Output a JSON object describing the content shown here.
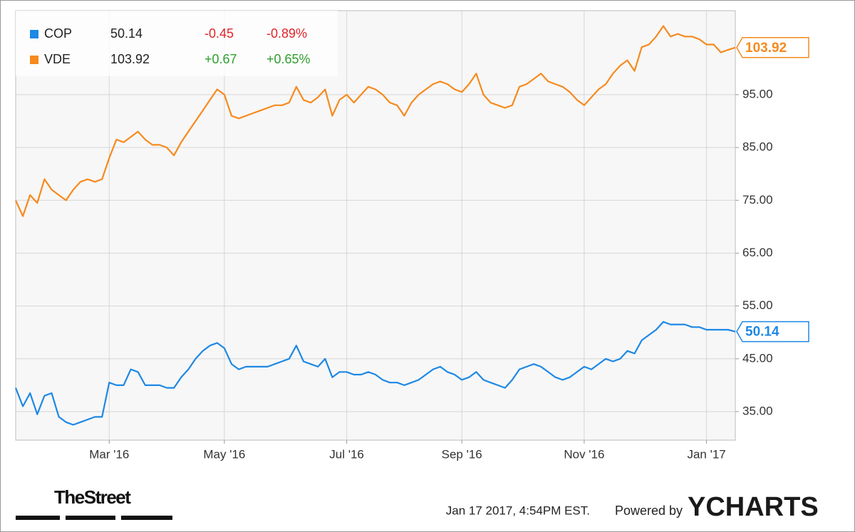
{
  "chart_data": {
    "type": "line",
    "categories": [
      null,
      null,
      null,
      null,
      null,
      null,
      null,
      null,
      null,
      null,
      null,
      null,
      null,
      "Mar '16",
      null,
      null,
      null,
      null,
      null,
      null,
      null,
      null,
      null,
      null,
      null,
      null,
      null,
      null,
      null,
      "May '16",
      null,
      null,
      null,
      null,
      null,
      null,
      null,
      null,
      null,
      null,
      null,
      null,
      null,
      null,
      null,
      null,
      "Jul '16",
      null,
      null,
      null,
      null,
      null,
      null,
      null,
      null,
      null,
      null,
      null,
      null,
      null,
      null,
      null,
      "Sep '16",
      null,
      null,
      null,
      null,
      null,
      null,
      null,
      null,
      null,
      null,
      null,
      null,
      null,
      null,
      null,
      null,
      "Nov '16",
      null,
      null,
      null,
      null,
      null,
      null,
      null,
      null,
      null,
      null,
      null,
      null,
      null,
      null,
      null,
      null,
      "Jan '17",
      null,
      null,
      null,
      null
    ],
    "series": [
      {
        "name": "COP",
        "color": "#1e88e5",
        "change": "-0.45",
        "change_pct": "-0.89%",
        "values": [
          39.5,
          36,
          38.5,
          34.5,
          38,
          38.5,
          34,
          33,
          32.5,
          33,
          33.5,
          34,
          34,
          40.5,
          40,
          40,
          43,
          42.5,
          40,
          40,
          40,
          39.5,
          39.5,
          41.5,
          43,
          45,
          46.5,
          47.5,
          48,
          47,
          44,
          43,
          43.5,
          43.5,
          43.5,
          43.5,
          44,
          44.5,
          45,
          47.5,
          44.5,
          44,
          43.5,
          45,
          41.5,
          42.5,
          42.5,
          42,
          42,
          42.5,
          42,
          41,
          40.5,
          40.5,
          40,
          40.5,
          41,
          42,
          43,
          43.5,
          42.5,
          42,
          41,
          41.5,
          42.5,
          41,
          40.5,
          40,
          39.5,
          41,
          43,
          43.5,
          44,
          43.5,
          42.5,
          41.5,
          41,
          41.5,
          42.5,
          43.5,
          43,
          44,
          45,
          44.5,
          45,
          46.5,
          46,
          48.5,
          49.5,
          50.5,
          52,
          51.5,
          51.5,
          51.5,
          51,
          51,
          50.5,
          50.5,
          50.5,
          50.5,
          50.14
        ]
      },
      {
        "name": "VDE",
        "color": "#f68a1e",
        "change": "+0.67",
        "change_pct": "+0.65%",
        "values": [
          75,
          72,
          76,
          74.5,
          79,
          77,
          76,
          75,
          77,
          78.5,
          79,
          78.5,
          79,
          83,
          86.5,
          86,
          87,
          88,
          86.5,
          85.5,
          85.5,
          85,
          83.5,
          86,
          88,
          90,
          92,
          94,
          96,
          95,
          91,
          90.5,
          91,
          91.5,
          92,
          92.5,
          93,
          93,
          93.5,
          96.5,
          94,
          93.5,
          94.5,
          96,
          91,
          94,
          95,
          93.5,
          95,
          96.5,
          96,
          95,
          93.5,
          93,
          91,
          93.5,
          95,
          96,
          97,
          97.5,
          97,
          96,
          95.5,
          97,
          99,
          95,
          93.5,
          93,
          92.5,
          93,
          96.5,
          97,
          98,
          99,
          97.5,
          97,
          96.5,
          95.5,
          94,
          93,
          94.5,
          96,
          97,
          99,
          100.5,
          101.5,
          99.5,
          104,
          104.5,
          106,
          108,
          106,
          106.5,
          106,
          106,
          105.5,
          104.5,
          104.5,
          103,
          103.5,
          103.92
        ]
      }
    ],
    "ylim": [
      29.6,
      110.9
    ],
    "yticks": [
      {
        "value": 35,
        "label": "35.00"
      },
      {
        "value": 45,
        "label": "45.00"
      },
      {
        "value": 55,
        "label": "55.00"
      },
      {
        "value": 65,
        "label": "65.00"
      },
      {
        "value": 75,
        "label": "75.00"
      },
      {
        "value": 85,
        "label": "85.00"
      },
      {
        "value": 95,
        "label": "95.00"
      }
    ],
    "grid": true
  },
  "footer": {
    "brand": "TheStreet",
    "timestamp": "Jan 17 2017, 4:54PM EST.",
    "powered": "Powered by",
    "provider": "YCHARTS"
  }
}
